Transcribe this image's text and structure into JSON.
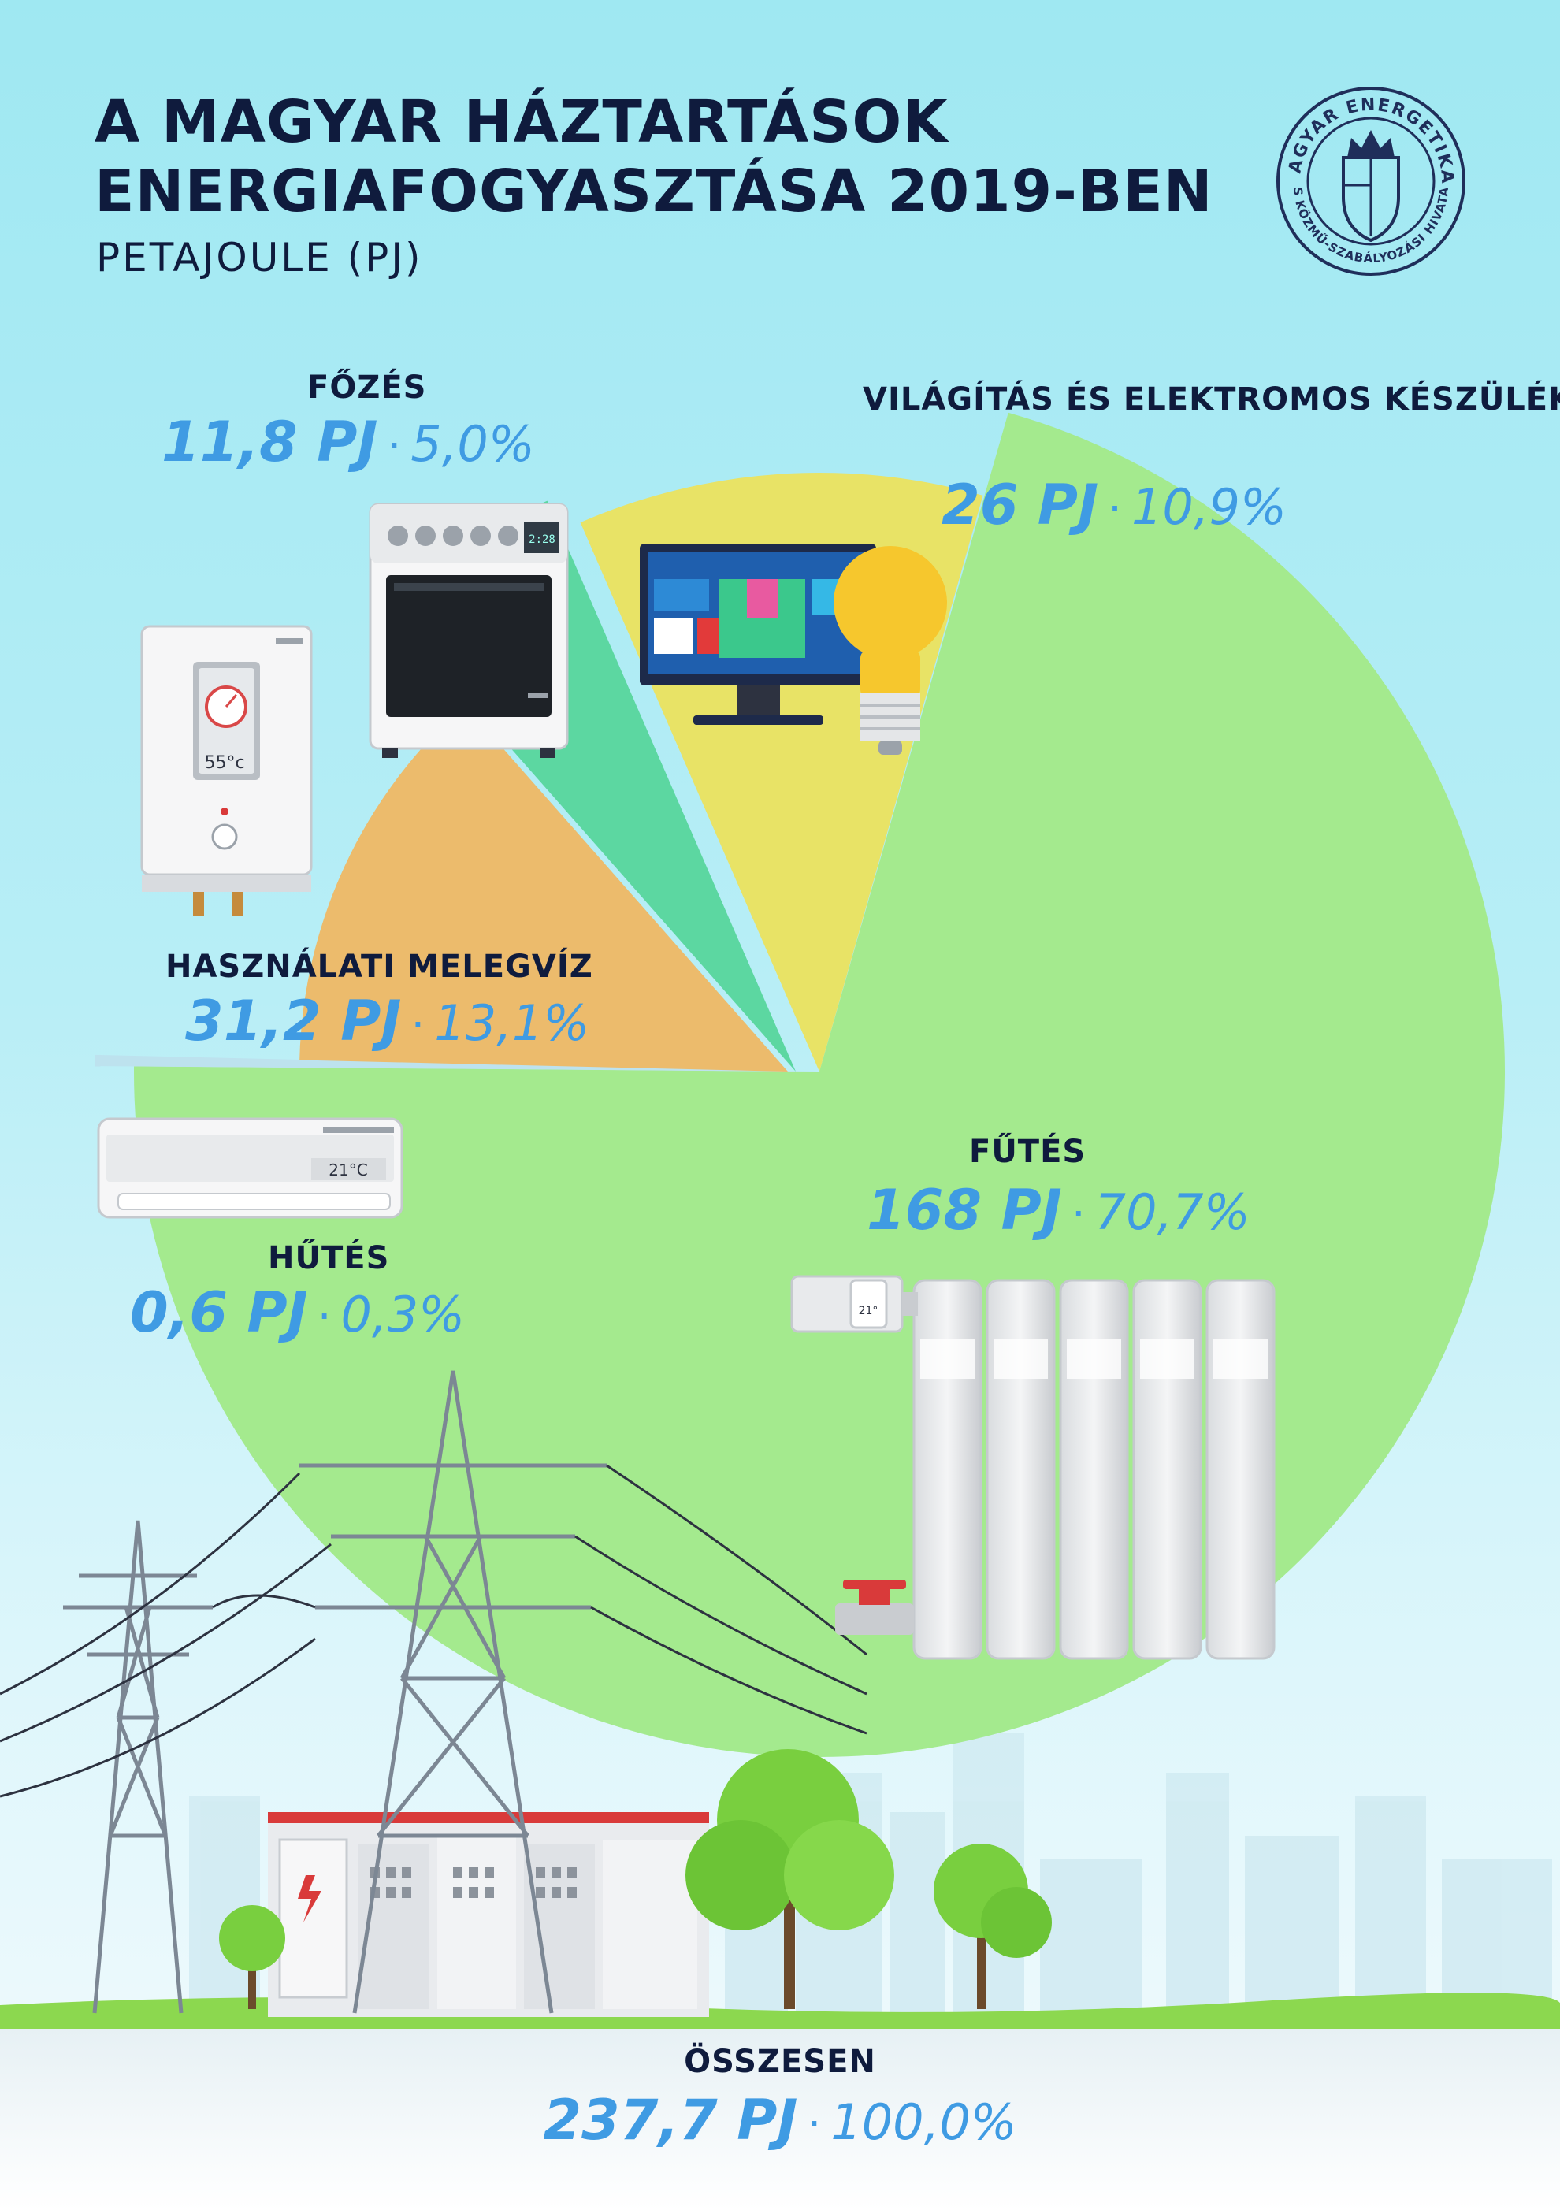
{
  "header": {
    "title_line1": "A MAGYAR HÁZTARTÁSOK",
    "title_line2": "ENERGIAFOGYASZTÁSA 2019-BEN",
    "subtitle": "PETAJOULE (PJ)"
  },
  "logo": {
    "text_top": "MAGYAR ENERGETIKAI",
    "text_bottom": "ÉS KÖZMŰ-SZABÁLYOZÁSI HIVATAL",
    "icon": "coat-of-arms-seal"
  },
  "colors": {
    "heating": "#a4ea8e",
    "lighting": "#e8e366",
    "cooking": "#5cd7a1",
    "hot_water": "#ecbb6c",
    "cooling": "#bde2ee",
    "value_text": "#3f9be3",
    "label_text": "#0f1b3d"
  },
  "chart_data": {
    "type": "pie",
    "unit": "PJ",
    "slices": [
      {
        "name": "FŰTÉS",
        "value": 168,
        "value_label": "168 PJ",
        "percent": 70.7,
        "percent_label": "70,7%",
        "color": "#a4ea8e",
        "icon": "radiator-icon"
      },
      {
        "name": "VILÁGÍTÁS ÉS ELEKTROMOS KÉSZÜLÉKEK",
        "value": 26,
        "value_label": "26 PJ",
        "percent": 10.9,
        "percent_label": "10,9%",
        "color": "#e8e366",
        "icon": "tv-and-bulb-icon"
      },
      {
        "name": "FŐZÉS",
        "value": 11.8,
        "value_label": "11,8 PJ",
        "percent": 5.0,
        "percent_label": "5,0%",
        "color": "#5cd7a1",
        "icon": "stove-icon"
      },
      {
        "name": "HASZNÁLATI MELEGVÍZ",
        "value": 31.2,
        "value_label": "31,2 PJ",
        "percent": 13.1,
        "percent_label": "13,1%",
        "color": "#ecbb6c",
        "icon": "water-heater-icon"
      },
      {
        "name": "HŰTÉS",
        "value": 0.6,
        "value_label": "0,6 PJ",
        "percent": 0.3,
        "percent_label": "0,3%",
        "color": "#bde2ee",
        "icon": "air-conditioner-icon"
      }
    ],
    "total": {
      "name": "ÖSSZESEN",
      "value": 237.7,
      "value_label": "237,7 PJ",
      "percent": 100.0,
      "percent_label": "100,0%"
    }
  },
  "separator": "·",
  "decor": {
    "stove_display": "2:28",
    "heater_display": "55",
    "heater_unit": "°c",
    "ac_display": "21°C",
    "valve_display": "21°"
  }
}
